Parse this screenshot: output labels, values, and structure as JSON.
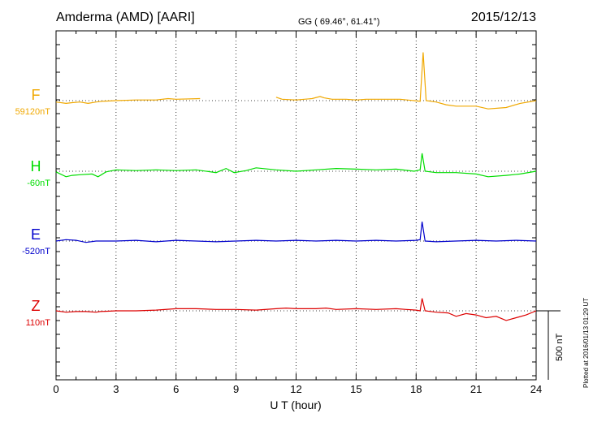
{
  "header": {
    "station": "Amderma (AMD)  [AARI]",
    "coords": "GG ( 69.46°,  61.41°)",
    "date": "2015/12/13"
  },
  "side_note": "Plotted at 2016/01/13 01:29 UT",
  "scale_label": "500 nT",
  "colors": {
    "F": "#f0a800",
    "H": "#00dd00",
    "E": "#0000cc",
    "Z": "#dd0000",
    "axis": "#000000"
  },
  "chart_data": {
    "type": "line",
    "xlabel": "U T (hour)",
    "xlim": [
      0,
      24
    ],
    "xticks": [
      "0",
      "3",
      "6",
      "9",
      "12",
      "15",
      "18",
      "21",
      "24"
    ],
    "series": [
      {
        "name": "F",
        "baseline_label": "59120nT",
        "x": [
          0,
          0.5,
          0.8,
          1.2,
          1.6,
          2.0,
          2.3,
          3.0,
          4.0,
          5.0,
          5.6,
          6.0,
          7.2,
          11.0,
          11.3,
          12.0,
          12.8,
          13.2,
          13.4,
          13.8,
          14.5,
          15.0,
          15.5,
          16.5,
          17.2,
          17.9,
          18.2,
          18.35,
          18.5,
          19.0,
          19.5,
          20.0,
          21.0,
          21.6,
          22.5,
          23.2,
          24.0
        ],
        "values": [
          -10,
          -20,
          -15,
          -10,
          -20,
          -10,
          -5,
          0,
          5,
          5,
          15,
          10,
          15,
          25,
          10,
          5,
          15,
          30,
          20,
          10,
          10,
          5,
          10,
          10,
          10,
          0,
          -5,
          350,
          0,
          -10,
          -30,
          -40,
          -40,
          -60,
          -50,
          -20,
          0
        ]
      },
      {
        "name": "H",
        "baseline_label": "-60nT",
        "x": [
          0,
          0.5,
          0.8,
          1.2,
          1.8,
          2.1,
          2.5,
          3.0,
          4.0,
          5.0,
          6.0,
          7.0,
          8.0,
          8.5,
          8.9,
          9.5,
          10.0,
          11.0,
          12.0,
          13.0,
          14.0,
          15.0,
          16.0,
          17.0,
          17.9,
          18.2,
          18.3,
          18.45,
          19.0,
          19.5,
          20.0,
          21.0,
          21.6,
          22.5,
          23.2,
          24.0
        ],
        "values": [
          -5,
          -40,
          -30,
          -25,
          -20,
          -40,
          -5,
          10,
          5,
          10,
          5,
          10,
          -10,
          20,
          -10,
          5,
          25,
          10,
          0,
          10,
          20,
          15,
          10,
          15,
          0,
          10,
          130,
          0,
          -10,
          -10,
          -10,
          -20,
          -40,
          -30,
          -20,
          0
        ]
      },
      {
        "name": "E",
        "baseline_label": "-520nT",
        "x": [
          0,
          0.5,
          1.0,
          1.5,
          2.0,
          3.0,
          4.0,
          5.0,
          6.0,
          7.0,
          8.0,
          9.0,
          10.0,
          11.0,
          12.0,
          13.0,
          14.0,
          15.0,
          16.0,
          17.0,
          18.0,
          18.2,
          18.3,
          18.45,
          19.0,
          20.0,
          21.0,
          22.0,
          23.0,
          24.0
        ],
        "values": [
          0,
          10,
          5,
          -10,
          0,
          0,
          5,
          -5,
          5,
          0,
          -5,
          0,
          5,
          0,
          5,
          0,
          5,
          0,
          5,
          0,
          5,
          10,
          140,
          0,
          -5,
          0,
          5,
          0,
          5,
          0
        ]
      },
      {
        "name": "Z",
        "baseline_label": "110nT",
        "x": [
          0,
          0.5,
          1.0,
          1.5,
          2.0,
          2.2,
          3.0,
          4.0,
          5.0,
          6.0,
          7.0,
          8.0,
          9.0,
          10.0,
          11.0,
          11.5,
          12.0,
          13.0,
          13.5,
          14.0,
          15.0,
          16.0,
          17.0,
          17.5,
          18.0,
          18.2,
          18.3,
          18.45,
          19.0,
          19.6,
          20.0,
          20.5,
          21.0,
          21.5,
          22.0,
          22.5,
          23.0,
          23.5,
          24.0
        ],
        "values": [
          0,
          -10,
          -5,
          -5,
          -10,
          -5,
          0,
          0,
          5,
          15,
          15,
          10,
          10,
          5,
          15,
          20,
          15,
          15,
          20,
          10,
          15,
          10,
          15,
          10,
          5,
          0,
          90,
          0,
          -10,
          -15,
          -40,
          -20,
          -30,
          -50,
          -40,
          -70,
          -50,
          -30,
          0
        ]
      }
    ],
    "scale_bar_nT": 500,
    "grid": true
  }
}
